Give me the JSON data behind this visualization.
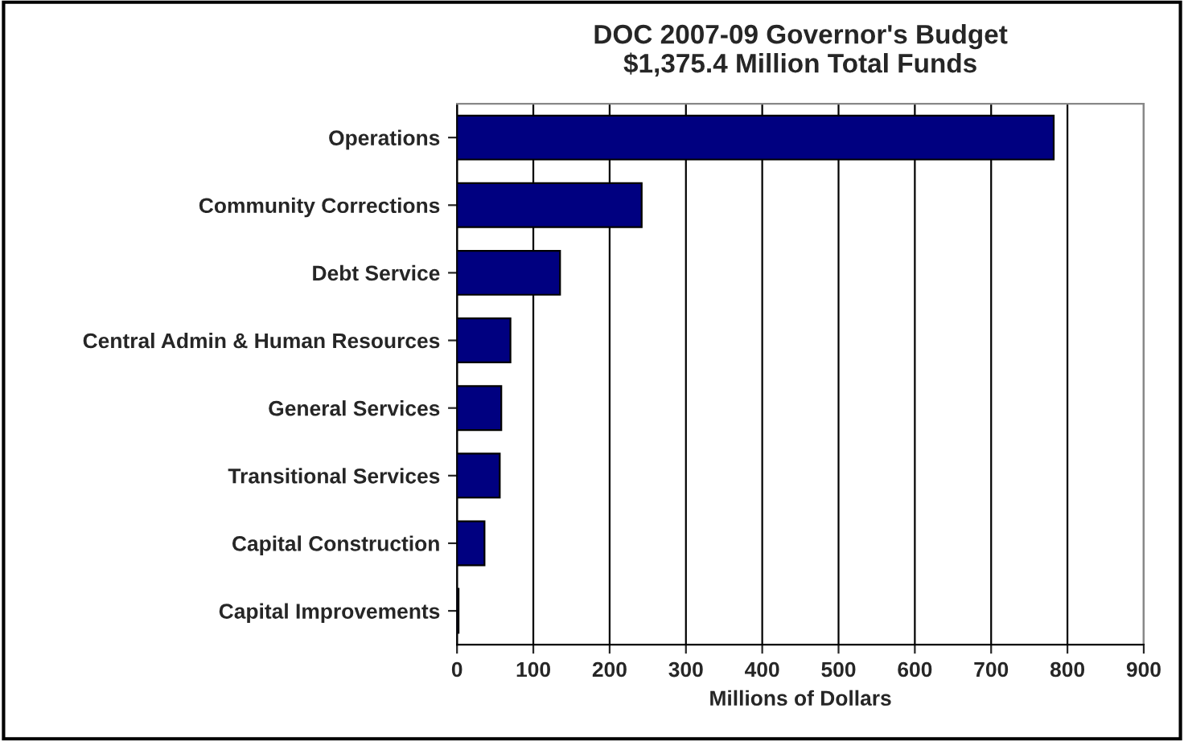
{
  "chart_data": {
    "type": "bar",
    "orientation": "horizontal",
    "title": "DOC 2007-09 Governor's Budget\n$1,375.4 Million Total Funds",
    "xlabel": "Millions of Dollars",
    "categories": [
      "Operations",
      "Community Corrections",
      "Debt Service",
      "Central Admin & Human Resources",
      "General Services",
      "Transitional Services",
      "Capital Construction",
      "Capital Improvements"
    ],
    "values": [
      782,
      242,
      135,
      70,
      58,
      56,
      36,
      2
    ],
    "color": "#000080",
    "xlim": [
      0,
      900
    ],
    "xticks": [
      0,
      100,
      200,
      300,
      400,
      500,
      600,
      700,
      800,
      900
    ],
    "grid": "x",
    "legend": false
  }
}
